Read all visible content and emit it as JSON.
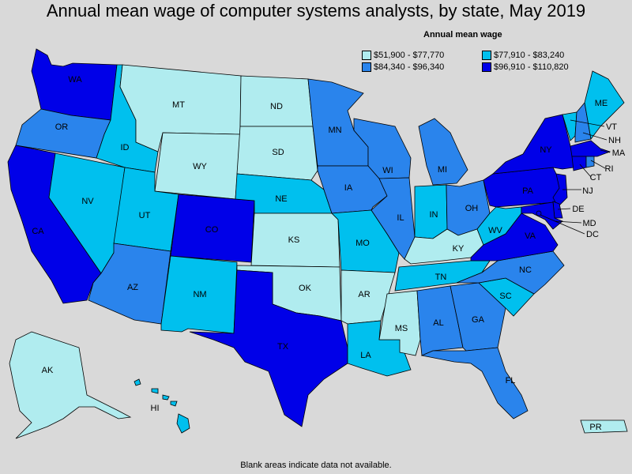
{
  "title": "Annual mean wage of computer systems analysts, by state, May 2019",
  "legend": {
    "title": "Annual mean wage",
    "items": [
      {
        "label": "$51,900 - $77,770",
        "color": "#b0ecef"
      },
      {
        "label": "$77,910 - $83,240",
        "color": "#00c0ee"
      },
      {
        "label": "$84,340 - $96,340",
        "color": "#2a84ec"
      },
      {
        "label": "$96,910 - $110,820",
        "color": "#0000e8"
      }
    ]
  },
  "footnote": "Blank areas indicate data not available.",
  "states": {
    "WA": {
      "label": "WA",
      "tier": 3
    },
    "OR": {
      "label": "OR",
      "tier": 2
    },
    "CA": {
      "label": "CA",
      "tier": 3
    },
    "NV": {
      "label": "NV",
      "tier": 1
    },
    "ID": {
      "label": "ID",
      "tier": 1
    },
    "MT": {
      "label": "MT",
      "tier": 0
    },
    "WY": {
      "label": "WY",
      "tier": 0
    },
    "UT": {
      "label": "UT",
      "tier": 1
    },
    "AZ": {
      "label": "AZ",
      "tier": 2
    },
    "CO": {
      "label": "CO",
      "tier": 3
    },
    "NM": {
      "label": "NM",
      "tier": 1
    },
    "ND": {
      "label": "ND",
      "tier": 0
    },
    "SD": {
      "label": "SD",
      "tier": 0
    },
    "NE": {
      "label": "NE",
      "tier": 1
    },
    "KS": {
      "label": "KS",
      "tier": 0
    },
    "OK": {
      "label": "OK",
      "tier": 0
    },
    "TX": {
      "label": "TX",
      "tier": 3
    },
    "MN": {
      "label": "MN",
      "tier": 2
    },
    "IA": {
      "label": "IA",
      "tier": 2
    },
    "MO": {
      "label": "MO",
      "tier": 1
    },
    "AR": {
      "label": "AR",
      "tier": 0
    },
    "LA": {
      "label": "LA",
      "tier": 1
    },
    "WI": {
      "label": "WI",
      "tier": 2
    },
    "IL": {
      "label": "IL",
      "tier": 2
    },
    "MI": {
      "label": "MI",
      "tier": 2
    },
    "IN": {
      "label": "IN",
      "tier": 1
    },
    "OH": {
      "label": "OH",
      "tier": 2
    },
    "KY": {
      "label": "KY",
      "tier": 0
    },
    "TN": {
      "label": "TN",
      "tier": 1
    },
    "MS": {
      "label": "MS",
      "tier": 0
    },
    "AL": {
      "label": "AL",
      "tier": 2
    },
    "GA": {
      "label": "GA",
      "tier": 2
    },
    "FL": {
      "label": "FL",
      "tier": 2
    },
    "SC": {
      "label": "SC",
      "tier": 1
    },
    "NC": {
      "label": "NC",
      "tier": 2
    },
    "VA": {
      "label": "VA",
      "tier": 3
    },
    "WV": {
      "label": "WV",
      "tier": 1
    },
    "PA": {
      "label": "PA",
      "tier": 3
    },
    "NY": {
      "label": "NY",
      "tier": 3
    },
    "VT": {
      "label": "VT",
      "tier": 1
    },
    "NH": {
      "label": "NH",
      "tier": 2
    },
    "ME": {
      "label": "ME",
      "tier": 1
    },
    "MA": {
      "label": "MA",
      "tier": 3
    },
    "RI": {
      "label": "RI",
      "tier": 2
    },
    "CT": {
      "label": "CT",
      "tier": 3
    },
    "NJ": {
      "label": "NJ",
      "tier": 3
    },
    "DE": {
      "label": "DE",
      "tier": 3
    },
    "MD": {
      "label": "MD",
      "tier": 3
    },
    "DC": {
      "label": "DC",
      "tier": 3
    },
    "AK": {
      "label": "AK",
      "tier": 0
    },
    "HI": {
      "label": "HI",
      "tier": 1
    },
    "PR": {
      "label": "PR",
      "tier": 0
    }
  }
}
